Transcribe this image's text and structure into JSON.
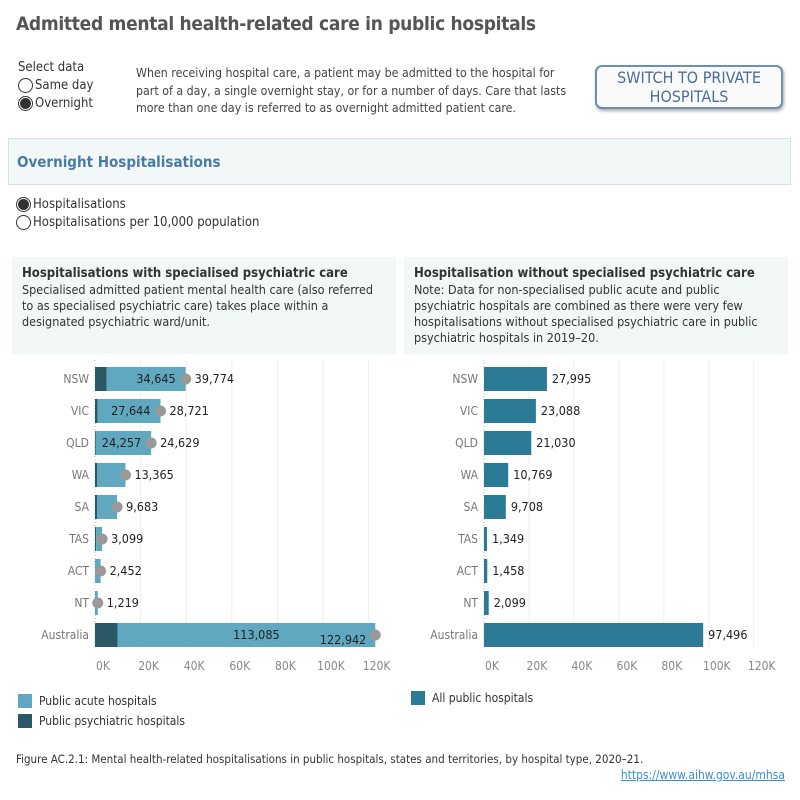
{
  "title": "Admitted mental health-related care in public hospitals",
  "select": {
    "label": "Select data",
    "options": [
      "Same day",
      "Overnight"
    ],
    "selected": "Overnight"
  },
  "intro": "When receiving hospital care, a patient may be admitted to the hospital for part of a day, a single overnight stay, or for a number of days. Care that lasts more than one day is referred to as overnight admitted patient care.",
  "switch_button": "SWITCH TO PRIVATE HOSPITALS",
  "section_title": "Overnight Hospitalisations",
  "measure": {
    "options": [
      "Hospitalisations",
      "Hospitalisations per 10,000 population"
    ],
    "selected": "Hospitalisations"
  },
  "left_panel": {
    "title": "Hospitalisations with specialised psychiatric care",
    "text": "Specialised admitted patient mental health care (also referred to as specialised psychiatric care) takes place within a designated psychiatric ward/unit."
  },
  "right_panel": {
    "title": "Hospitalisation without specialised psychiatric care",
    "text": "Note: Data for non-specialised public acute and public psychiatric hospitals are combined as there were very few hospitalisations without specialised psychiatric care in public psychiatric hospitals in 2019–20."
  },
  "chart_data": [
    {
      "type": "bar",
      "stacked": true,
      "orientation": "horizontal",
      "categories": [
        "NSW",
        "VIC",
        "QLD",
        "WA",
        "SA",
        "TAS",
        "ACT",
        "NT",
        "Australia"
      ],
      "series": [
        {
          "name": "Public psychiatric hospitals",
          "color": "#2a5866",
          "values": [
            5129,
            1077,
            372,
            1000,
            900,
            500,
            0,
            0,
            9857
          ]
        },
        {
          "name": "Public acute hospitals",
          "color": "#5fa8bf",
          "values": [
            34645,
            27644,
            24257,
            12365,
            8783,
            2599,
            2452,
            1219,
            113085
          ]
        }
      ],
      "acute_labels": [
        "34,645",
        "27,644",
        "24,257",
        null,
        null,
        null,
        null,
        null,
        "113,085"
      ],
      "totals": [
        39774,
        28721,
        24629,
        13365,
        9683,
        3099,
        2452,
        1219,
        122942
      ],
      "total_labels": [
        "39,774",
        "28,721",
        "24,629",
        "13,365",
        "9,683",
        "3,099",
        "2,452",
        "1,219",
        "122,942"
      ],
      "total_marker_color": "#999999",
      "xlim": [
        0,
        125000
      ],
      "xticks": [
        "0K",
        "20K",
        "40K",
        "60K",
        "80K",
        "100K",
        "120K"
      ],
      "grid": true
    },
    {
      "type": "bar",
      "orientation": "horizontal",
      "categories": [
        "NSW",
        "VIC",
        "QLD",
        "WA",
        "SA",
        "TAS",
        "ACT",
        "NT",
        "Australia"
      ],
      "series": [
        {
          "name": "All public hospitals",
          "color": "#2b7b96",
          "values": [
            27995,
            23088,
            21030,
            10769,
            9708,
            1349,
            1458,
            2099,
            97496
          ]
        }
      ],
      "labels": [
        "27,995",
        "23,088",
        "21,030",
        "10,769",
        "9,708",
        "1,349",
        "1,458",
        "2,099",
        "97,496"
      ],
      "xlim": [
        0,
        125000
      ],
      "xticks": [
        "0K",
        "20K",
        "40K",
        "60K",
        "80K",
        "100K",
        "120K"
      ],
      "grid": true
    }
  ],
  "caption": "Figure AC.2.1: Mental health-related hospitalisations in public hospitals, states and territories, by hospital type, 2020–21.",
  "link": "https://www.aihw.gov.au/mhsa"
}
